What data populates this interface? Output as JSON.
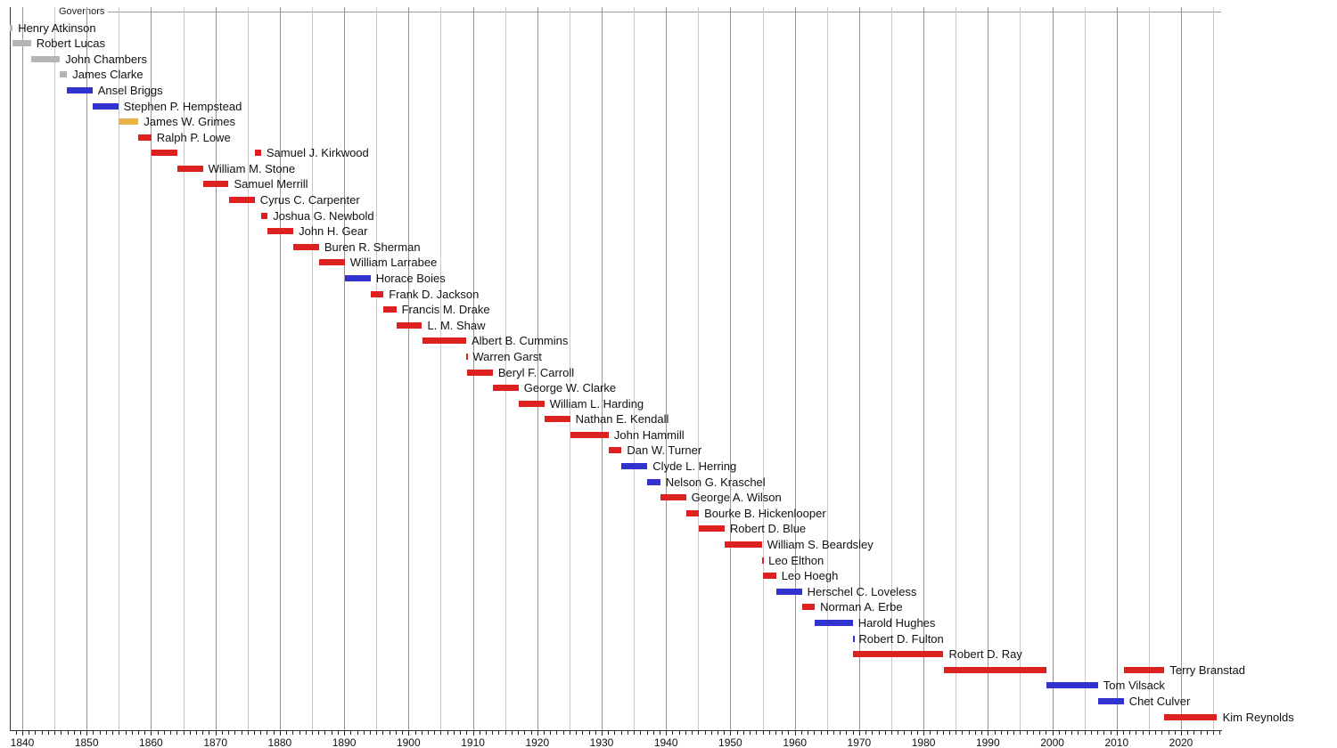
{
  "chart_data": {
    "type": "gantt-timeline",
    "title": "Governors",
    "x_axis": {
      "start_year": 1838.06,
      "end_year": 2026.3,
      "grid_interval_years": 5,
      "tick_interval_years": 1,
      "label_interval_years": 10,
      "decade_labels": [
        "1840",
        "1850",
        "1860",
        "1870",
        "1880",
        "1890",
        "1900",
        "1910",
        "1920",
        "1930",
        "1940",
        "1950",
        "1960",
        "1970",
        "1980",
        "1990",
        "2000",
        "2010",
        "2020"
      ],
      "decade_label_years": [
        1840,
        1850,
        1860,
        1870,
        1880,
        1890,
        1900,
        1910,
        1920,
        1930,
        1940,
        1950,
        1960,
        1970,
        1980,
        1990,
        2000,
        2010,
        2020
      ]
    },
    "grid": {
      "on": true,
      "minor_color": "#C9C9C9",
      "major_color": "#979797"
    },
    "party_colors": {
      "gray": "#B5B5B5",
      "blue": "#3232CE",
      "gold": "#E9B34C",
      "red": "#DD2020"
    },
    "governors": [
      {
        "name": "Henry Atkinson",
        "party": "gray",
        "terms": [
          [
            1838.1,
            1838.5
          ]
        ]
      },
      {
        "name": "Robert Lucas",
        "party": "gray",
        "terms": [
          [
            1838.5,
            1841.35
          ]
        ]
      },
      {
        "name": "John Chambers",
        "party": "gray",
        "terms": [
          [
            1841.35,
            1845.85
          ]
        ]
      },
      {
        "name": "James Clarke",
        "party": "gray",
        "terms": [
          [
            1845.85,
            1846.95
          ]
        ]
      },
      {
        "name": "Ansel Briggs",
        "party": "blue",
        "terms": [
          [
            1846.95,
            1850.9
          ]
        ]
      },
      {
        "name": "Stephen P. Hempstead",
        "party": "blue",
        "terms": [
          [
            1850.9,
            1854.9
          ]
        ]
      },
      {
        "name": "James W. Grimes",
        "party": "gold",
        "terms": [
          [
            1854.9,
            1858.05
          ]
        ]
      },
      {
        "name": "Ralph P. Lowe",
        "party": "red",
        "terms": [
          [
            1858.05,
            1860.05
          ]
        ]
      },
      {
        "name": "Samuel J. Kirkwood",
        "party": "red",
        "terms": [
          [
            1860.05,
            1864.05
          ],
          [
            1876.1,
            1877.1
          ]
        ]
      },
      {
        "name": "William M. Stone",
        "party": "red",
        "terms": [
          [
            1864.05,
            1868.05
          ]
        ]
      },
      {
        "name": "Samuel Merrill",
        "party": "red",
        "terms": [
          [
            1868.05,
            1872.05
          ]
        ]
      },
      {
        "name": "Cyrus C. Carpenter",
        "party": "red",
        "terms": [
          [
            1872.05,
            1876.1
          ]
        ]
      },
      {
        "name": "Joshua G. Newbold",
        "party": "red",
        "terms": [
          [
            1877.1,
            1878.1
          ]
        ]
      },
      {
        "name": "John H. Gear",
        "party": "red",
        "terms": [
          [
            1878.1,
            1882.1
          ]
        ]
      },
      {
        "name": "Buren R. Sherman",
        "party": "red",
        "terms": [
          [
            1882.1,
            1886.1
          ]
        ]
      },
      {
        "name": "William Larrabee",
        "party": "red",
        "terms": [
          [
            1886.1,
            1890.1
          ]
        ]
      },
      {
        "name": "Horace Boies",
        "party": "blue",
        "terms": [
          [
            1890.1,
            1894.1
          ]
        ]
      },
      {
        "name": "Frank D. Jackson",
        "party": "red",
        "terms": [
          [
            1894.1,
            1896.1
          ]
        ]
      },
      {
        "name": "Francis M. Drake",
        "party": "red",
        "terms": [
          [
            1896.1,
            1898.1
          ]
        ]
      },
      {
        "name": "L. M. Shaw",
        "party": "red",
        "terms": [
          [
            1898.1,
            1902.1
          ]
        ]
      },
      {
        "name": "Albert B. Cummins",
        "party": "red",
        "terms": [
          [
            1902.1,
            1908.95
          ]
        ]
      },
      {
        "name": "Warren Garst",
        "party": "red",
        "terms": [
          [
            1908.95,
            1909.15
          ]
        ]
      },
      {
        "name": "Beryl F. Carroll",
        "party": "red",
        "terms": [
          [
            1909.15,
            1913.1
          ]
        ]
      },
      {
        "name": "George W. Clarke",
        "party": "red",
        "terms": [
          [
            1913.1,
            1917.1
          ]
        ]
      },
      {
        "name": "William L. Harding",
        "party": "red",
        "terms": [
          [
            1917.1,
            1921.1
          ]
        ]
      },
      {
        "name": "Nathan E. Kendall",
        "party": "red",
        "terms": [
          [
            1921.1,
            1925.1
          ]
        ]
      },
      {
        "name": "John Hammill",
        "party": "red",
        "terms": [
          [
            1925.1,
            1931.1
          ]
        ]
      },
      {
        "name": "Dan W. Turner",
        "party": "red",
        "terms": [
          [
            1931.1,
            1933.1
          ]
        ]
      },
      {
        "name": "Clyde L. Herring",
        "party": "blue",
        "terms": [
          [
            1933.1,
            1937.1
          ]
        ]
      },
      {
        "name": "Nelson G. Kraschel",
        "party": "blue",
        "terms": [
          [
            1937.1,
            1939.1
          ]
        ]
      },
      {
        "name": "George A. Wilson",
        "party": "red",
        "terms": [
          [
            1939.1,
            1943.1
          ]
        ]
      },
      {
        "name": "Bourke B. Hickenlooper",
        "party": "red",
        "terms": [
          [
            1943.1,
            1945.1
          ]
        ]
      },
      {
        "name": "Robert D. Blue",
        "party": "red",
        "terms": [
          [
            1945.1,
            1949.1
          ]
        ]
      },
      {
        "name": "William S. Beardsley",
        "party": "red",
        "terms": [
          [
            1949.1,
            1954.87
          ]
        ]
      },
      {
        "name": "Leo Elthon",
        "party": "red",
        "terms": [
          [
            1954.87,
            1955.07
          ]
        ]
      },
      {
        "name": "Leo Hoegh",
        "party": "red",
        "terms": [
          [
            1955.07,
            1957.1
          ]
        ]
      },
      {
        "name": "Herschel C. Loveless",
        "party": "blue",
        "terms": [
          [
            1957.1,
            1961.1
          ]
        ]
      },
      {
        "name": "Norman A. Erbe",
        "party": "red",
        "terms": [
          [
            1961.1,
            1963.1
          ]
        ]
      },
      {
        "name": "Harold Hughes",
        "party": "blue",
        "terms": [
          [
            1963.1,
            1969.0
          ]
        ]
      },
      {
        "name": "Robert D. Fulton",
        "party": "blue",
        "terms": [
          [
            1969.0,
            1969.1
          ]
        ]
      },
      {
        "name": "Robert D. Ray",
        "party": "red",
        "terms": [
          [
            1969.1,
            1983.1
          ]
        ]
      },
      {
        "name": "Terry Branstad",
        "party": "red",
        "terms": [
          [
            1983.1,
            1999.12
          ],
          [
            2011.1,
            2017.43
          ]
        ]
      },
      {
        "name": "Tom Vilsack",
        "party": "blue",
        "terms": [
          [
            1999.12,
            2007.1
          ]
        ]
      },
      {
        "name": "Chet Culver",
        "party": "blue",
        "terms": [
          [
            2007.1,
            2011.1
          ]
        ]
      },
      {
        "name": "Kim Reynolds",
        "party": "red",
        "terms": [
          [
            2017.43,
            2025.62
          ]
        ]
      }
    ]
  }
}
